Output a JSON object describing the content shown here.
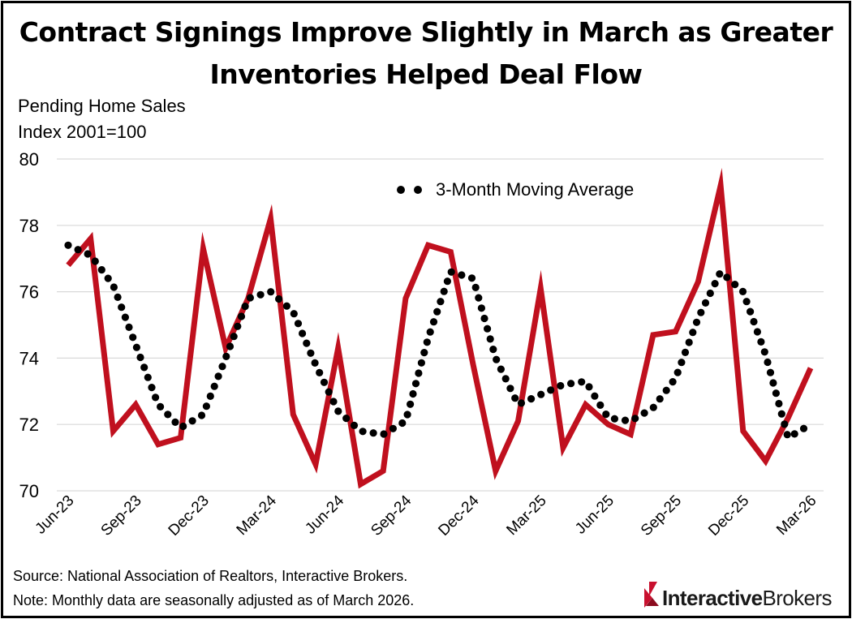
{
  "title_line1": "Contract Signings Improve Slightly in March as Greater",
  "title_line2": "Inventories Helped Deal Flow",
  "ylabel_line1": "Pending Home Sales",
  "ylabel_line2": "Index 2001=100",
  "source": "Source: National Association of Realtors, Interactive Brokers.",
  "note": "Note: Monthly data are seasonally adjusted as of  March 2026.",
  "logo": {
    "part1": "Interactive",
    "part2": "Brokers",
    "icon": "interactive-brokers-logo-icon",
    "accent": "#c8102e"
  },
  "chart_data": {
    "type": "line",
    "ylim": [
      70,
      80
    ],
    "yticks": [
      70,
      72,
      74,
      76,
      78,
      80
    ],
    "grid": true,
    "legend_position": "top-right",
    "x": [
      "Jun-23",
      "Jul-23",
      "Aug-23",
      "Sep-23",
      "Oct-23",
      "Nov-23",
      "Dec-23",
      "Jan-24",
      "Feb-24",
      "Mar-24",
      "Apr-24",
      "May-24",
      "Jun-24",
      "Jul-24",
      "Aug-24",
      "Sep-24",
      "Oct-24",
      "Nov-24",
      "Dec-24",
      "Jan-25",
      "Feb-25",
      "Mar-25",
      "Apr-25",
      "May-25",
      "Jun-25",
      "Jul-25",
      "Aug-25",
      "Sep-25",
      "Oct-25",
      "Nov-25",
      "Dec-25",
      "Jan-26",
      "Feb-26",
      "Mar-26"
    ],
    "xtick_labels": [
      "Jun-23",
      "Sep-23",
      "Dec-23",
      "Mar-24",
      "Jun-24",
      "Sep-24",
      "Dec-24",
      "Mar-25",
      "Jun-25",
      "Sep-25",
      "Dec-25",
      "Mar-26"
    ],
    "series": [
      {
        "values": [
          76.8,
          77.6,
          71.8,
          72.6,
          71.4,
          71.6,
          77.3,
          74.3,
          75.8,
          78.2,
          72.3,
          70.8,
          74.3,
          70.2,
          70.6,
          75.8,
          77.4,
          77.2,
          73.8,
          70.6,
          72.1,
          76.1,
          71.3,
          72.6,
          72.0,
          71.7,
          74.7,
          74.8,
          76.3,
          79.2,
          71.8,
          70.9,
          72.2,
          73.7
        ],
        "color": "#c0101e",
        "style": "solid"
      },
      {
        "name": "3-Month Moving Average",
        "values": [
          77.4,
          77.1,
          76.2,
          74.4,
          72.6,
          71.9,
          72.3,
          74.0,
          75.8,
          76.0,
          75.4,
          73.8,
          72.4,
          71.8,
          71.7,
          72.1,
          74.6,
          76.6,
          76.4,
          74.0,
          72.6,
          72.9,
          73.2,
          73.3,
          72.2,
          72.1,
          72.5,
          73.4,
          75.2,
          76.6,
          76.0,
          74.1,
          71.6,
          72.0
        ],
        "color": "#000000",
        "style": "dotted"
      }
    ]
  }
}
